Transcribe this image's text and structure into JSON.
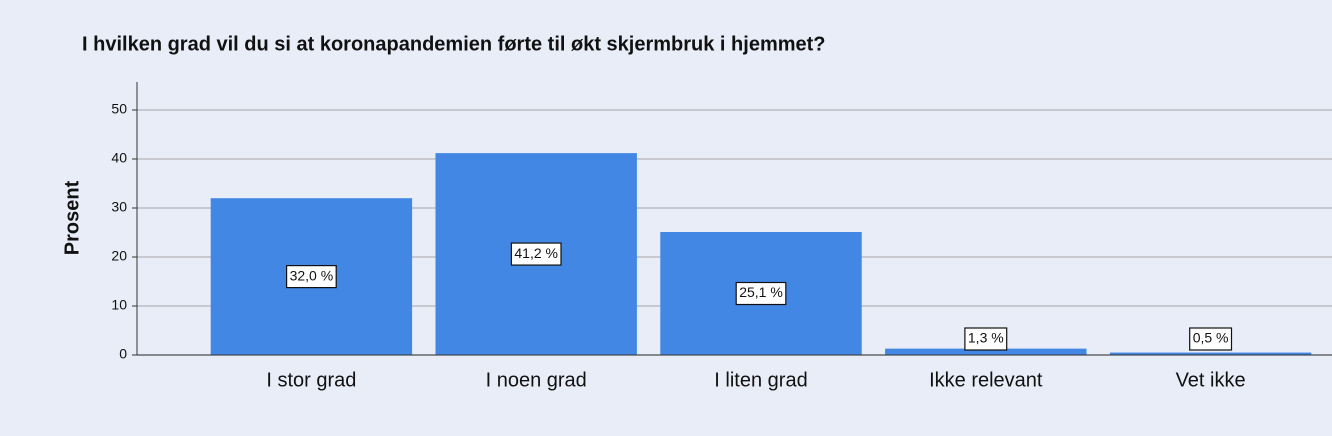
{
  "chart_data": {
    "type": "bar",
    "title": "I hvilken grad vil du si at koronapandemien førte til økt skjermbruk i hjemmet?",
    "y_label": "Prosent",
    "categories": [
      "I stor grad",
      "I noen grad",
      "I liten grad",
      "Ikke relevant",
      "Vet ikke"
    ],
    "values": [
      32.0,
      41.2,
      25.1,
      1.3,
      0.5
    ],
    "value_labels": [
      "32,0 %",
      "41,2 %",
      "25,1 %",
      "1,3 %",
      "0,5 %"
    ],
    "color": "#4287e4",
    "ylim": [
      0,
      55
    ],
    "yticks": [
      0,
      10,
      20,
      30,
      40,
      50
    ],
    "grid": true
  }
}
